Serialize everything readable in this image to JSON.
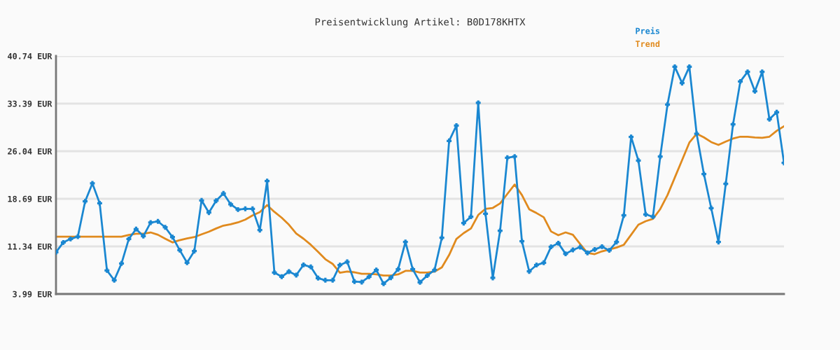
{
  "chart_data": {
    "type": "line",
    "title": "Preisentwicklung Artikel: B0D178KHTX",
    "categories": [
      null,
      null,
      null,
      null,
      null,
      null,
      null,
      null,
      null,
      null,
      null,
      null,
      null,
      null,
      null,
      null,
      null,
      null,
      null,
      null,
      null,
      null,
      null,
      null,
      null,
      null,
      null,
      null,
      null,
      null,
      null,
      null,
      null,
      null,
      null,
      null,
      null,
      null,
      null,
      null,
      null,
      null,
      null,
      null,
      null,
      null,
      null,
      null,
      null,
      null,
      null,
      null,
      null,
      null,
      null,
      null,
      null,
      null,
      null,
      null,
      null,
      null,
      null,
      null,
      null,
      null,
      null,
      null,
      null,
      null,
      null,
      null,
      null,
      null,
      null,
      null,
      null,
      null,
      null,
      null,
      null,
      null,
      null,
      null,
      null,
      null,
      null,
      null,
      null,
      null,
      null,
      null,
      null,
      null,
      null,
      null,
      null,
      null,
      null,
      null,
      null
    ],
    "series": [
      {
        "name": "Preis",
        "color": "#1a87d1",
        "marker": "cross",
        "values": [
          10.44,
          11.95,
          12.49,
          12.85,
          18.29,
          21.07,
          18.0,
          7.63,
          6.12,
          8.71,
          12.49,
          14.01,
          12.93,
          15.02,
          15.2,
          14.29,
          12.78,
          10.76,
          8.82,
          10.62,
          18.44,
          16.56,
          18.4,
          19.52,
          17.83,
          17.03,
          17.14,
          17.14,
          13.86,
          21.43,
          7.3,
          6.66,
          7.45,
          6.91,
          8.49,
          8.17,
          6.44,
          6.12,
          6.12,
          8.46,
          8.96,
          5.9,
          5.83,
          6.66,
          7.7,
          5.58,
          6.51,
          7.81,
          12.02,
          7.81,
          5.79,
          6.84,
          7.7,
          12.67,
          27.63,
          30.0,
          14.94,
          15.92,
          33.5,
          16.38,
          6.48,
          13.75,
          25.03,
          25.21,
          12.13,
          7.48,
          8.46,
          8.82,
          11.27,
          11.84,
          10.19,
          10.8,
          11.23,
          10.33,
          10.87,
          11.3,
          10.73,
          12.02,
          16.13,
          28.24,
          24.6,
          16.28,
          15.92,
          25.21,
          33.25,
          39.08,
          36.56,
          39.08,
          28.74,
          22.51,
          17.25,
          12.02,
          21.0,
          30.18,
          36.81,
          38.29,
          35.3,
          38.29,
          30.98,
          32.06,
          24.24
        ]
      },
      {
        "name": "Trend",
        "color": "#e08a1e",
        "marker": "none",
        "values": [
          12.85,
          12.85,
          12.85,
          12.85,
          12.85,
          12.85,
          12.85,
          12.85,
          12.85,
          12.85,
          13.11,
          13.29,
          13.29,
          13.5,
          13.14,
          12.53,
          11.95,
          12.31,
          12.56,
          12.78,
          13.21,
          13.61,
          14.11,
          14.55,
          14.76,
          15.05,
          15.48,
          16.13,
          16.64,
          17.72,
          16.67,
          15.77,
          14.69,
          13.32,
          12.53,
          11.59,
          10.51,
          9.36,
          8.64,
          7.27,
          7.45,
          7.34,
          7.12,
          7.12,
          7.02,
          6.84,
          6.84,
          7.02,
          7.56,
          7.56,
          7.3,
          7.3,
          7.45,
          8.1,
          10.01,
          12.49,
          13.39,
          14.11,
          16.2,
          17.14,
          17.28,
          17.97,
          19.45,
          20.89,
          19.27,
          17.07,
          16.49,
          15.84,
          13.65,
          13.07,
          13.5,
          13.14,
          11.7,
          10.33,
          10.15,
          10.58,
          10.87,
          11.16,
          11.59,
          13.14,
          14.69,
          15.23,
          15.59,
          17.1,
          19.27,
          21.97,
          24.67,
          27.37,
          28.74,
          28.17,
          27.45,
          27.01,
          27.52,
          27.99,
          28.28,
          28.28,
          28.17,
          28.1,
          28.28,
          29.18,
          29.9
        ]
      }
    ],
    "ylim": [
      3.99,
      40.74
    ],
    "yticks": [
      {
        "value": 3.99,
        "label": "3.99 EUR"
      },
      {
        "value": 11.34,
        "label": "11.34 EUR"
      },
      {
        "value": 18.69,
        "label": "18.69 EUR"
      },
      {
        "value": 26.04,
        "label": "26.04 EUR"
      },
      {
        "value": 33.39,
        "label": "33.39 EUR"
      },
      {
        "value": 40.74,
        "label": "40.74 EUR"
      }
    ],
    "grid": "y",
    "legend": "top right",
    "line_style": "solid"
  }
}
